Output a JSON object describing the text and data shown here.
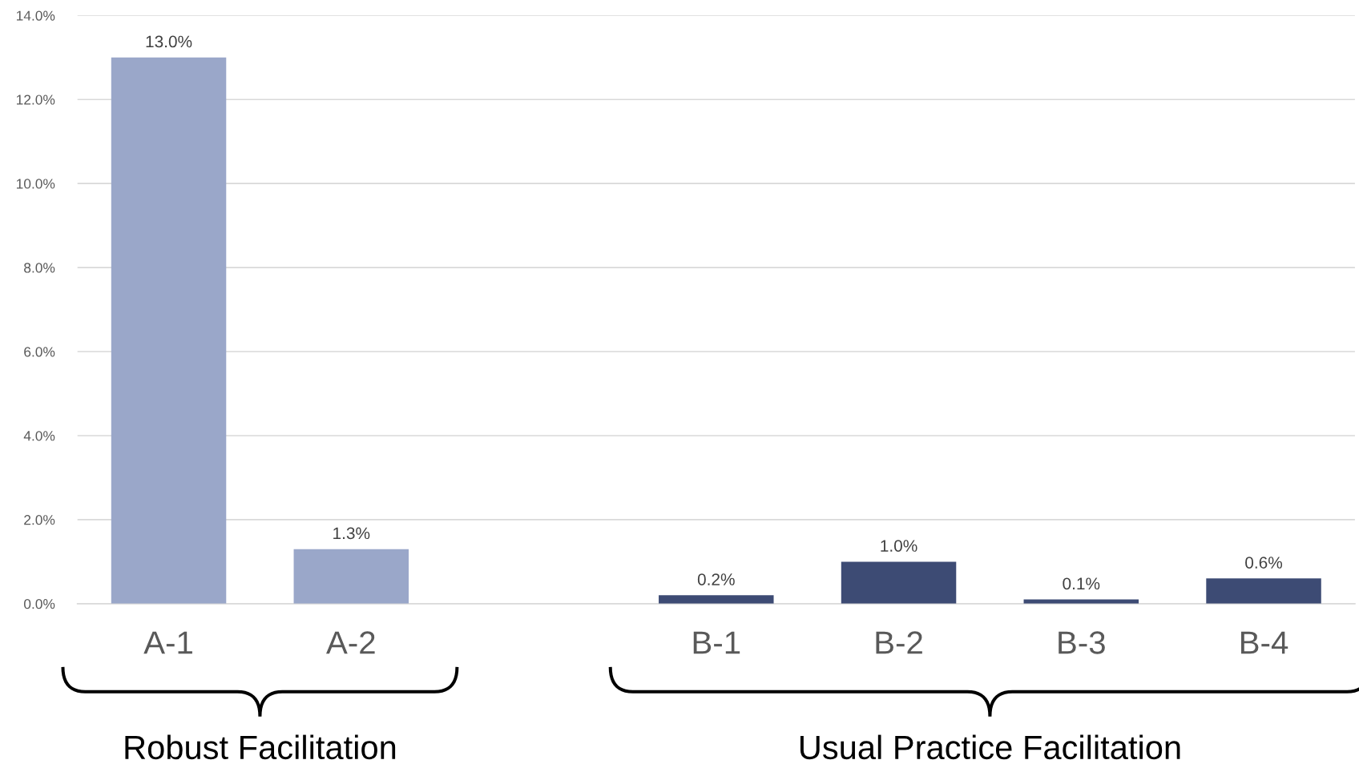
{
  "chart_data": {
    "type": "bar",
    "categories": [
      "A-1",
      "A-2",
      null,
      "B-1",
      "B-2",
      "B-3",
      "B-4"
    ],
    "values": [
      13.0,
      1.3,
      null,
      0.2,
      1.0,
      0.1,
      0.6
    ],
    "value_labels": [
      "13.0%",
      "1.3%",
      null,
      "0.2%",
      "1.0%",
      "0.1%",
      "0.6%"
    ],
    "colors": [
      "#9aa7c9",
      "#9aa7c9",
      null,
      "#3d4b74",
      "#3d4b74",
      "#3d4b74",
      "#3d4b74"
    ],
    "ylim": [
      0,
      14
    ],
    "yticks": [
      {
        "value": 0,
        "label": "0.0%"
      },
      {
        "value": 2,
        "label": "2.0%"
      },
      {
        "value": 4,
        "label": "4.0%"
      },
      {
        "value": 6,
        "label": "6.0%"
      },
      {
        "value": 8,
        "label": "8.0%"
      },
      {
        "value": 10,
        "label": "10.0%"
      },
      {
        "value": 12,
        "label": "12.0%"
      },
      {
        "value": 14,
        "label": "14.0%"
      }
    ],
    "grid": "y",
    "annotations": [
      "Robust Facilitation",
      "Usual Practice Facilitation"
    ]
  }
}
